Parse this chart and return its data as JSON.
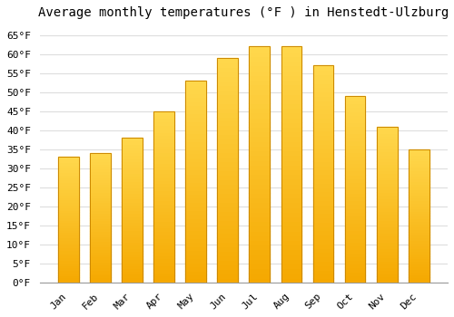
{
  "title": "Average monthly temperatures (°F ) in Henstedt-Ulzburg",
  "months": [
    "Jan",
    "Feb",
    "Mar",
    "Apr",
    "May",
    "Jun",
    "Jul",
    "Aug",
    "Sep",
    "Oct",
    "Nov",
    "Dec"
  ],
  "values": [
    33,
    34,
    38,
    45,
    53,
    59,
    62,
    62,
    57,
    49,
    41,
    35
  ],
  "bar_color_dark": "#F5A800",
  "bar_color_light": "#FFD84D",
  "bar_edge_color": "#CC8800",
  "background_color": "#FFFFFF",
  "grid_color": "#DDDDDD",
  "title_fontsize": 10,
  "tick_fontsize": 8,
  "ylim": [
    0,
    68
  ],
  "yticks": [
    0,
    5,
    10,
    15,
    20,
    25,
    30,
    35,
    40,
    45,
    50,
    55,
    60,
    65
  ]
}
